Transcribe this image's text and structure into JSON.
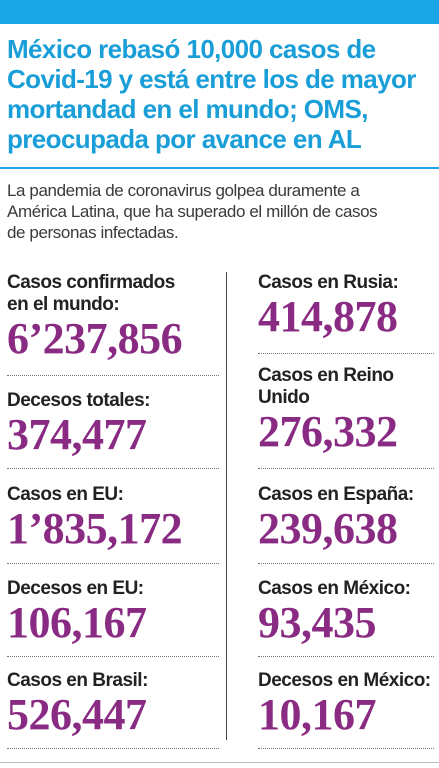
{
  "headline": {
    "lines": [
      "México rebasó 10,000 casos de",
      "Covid-19 y está entre los de mayor",
      "mortandad  en el mundo; OMS,",
      "preocupada por avance en AL"
    ]
  },
  "lede": {
    "lines": [
      "La pandemia de coronavirus golpea duramente a",
      "América Latina, que ha superado el millón de casos",
      "de personas infectadas."
    ]
  },
  "stats": {
    "left": [
      {
        "label": [
          "Casos confirmados",
          "en el mundo:"
        ],
        "value": "6’237,856"
      },
      {
        "label": [
          "Decesos totales:"
        ],
        "value": "374,477"
      },
      {
        "label": [
          "Casos en EU:"
        ],
        "value": "1’835,172"
      },
      {
        "label": [
          "Decesos en EU:"
        ],
        "value": "106,167"
      },
      {
        "label": [
          "Casos en Brasil:"
        ],
        "value": "526,447"
      }
    ],
    "right": [
      {
        "label": [
          "Casos en Rusia:"
        ],
        "value": "414,878"
      },
      {
        "label": [
          "Casos en Reino",
          "Unido"
        ],
        "value": "276,332"
      },
      {
        "label": [
          "Casos en España:"
        ],
        "value": "239,638"
      },
      {
        "label": [
          "Casos en México:"
        ],
        "value": "93,435"
      },
      {
        "label": [
          "Decesos en México:"
        ],
        "value": "10,167"
      }
    ]
  },
  "colors": {
    "brand_blue": "#1aa6e6",
    "headline_blue": "#1a9ed8",
    "figure_purple": "#8a2b83"
  }
}
